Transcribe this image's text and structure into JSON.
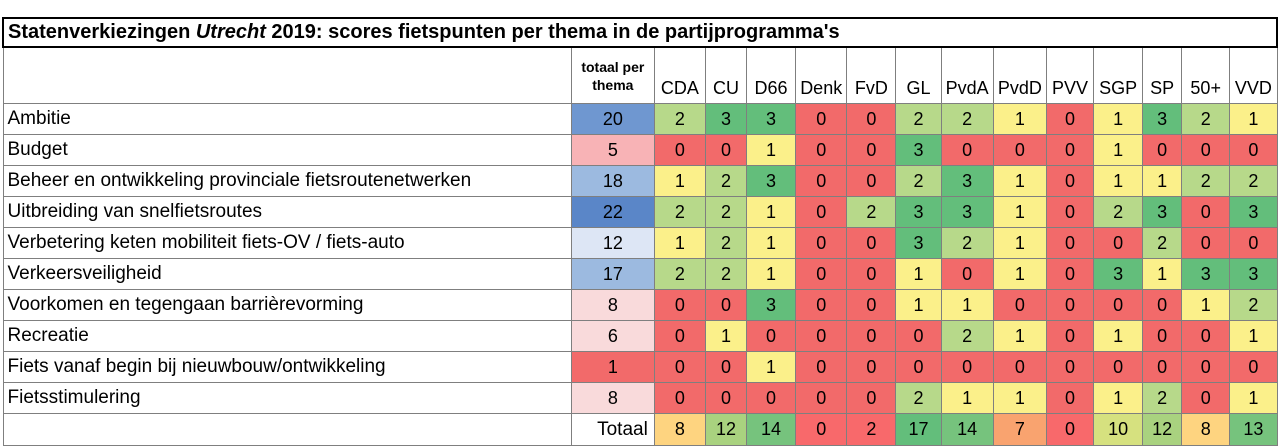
{
  "title": {
    "before": "Statenverkiezingen ",
    "italic": "Utrecht",
    "after": " 2019: scores fietspunten per thema in de partijprogramma's"
  },
  "header": {
    "total_col": "totaal per thema",
    "parties": [
      "CDA",
      "CU",
      "D66",
      "Denk",
      "FvD",
      "GL",
      "PvdA",
      "PvdD",
      "PVV",
      "SGP",
      "SP",
      "50+",
      "VVD"
    ]
  },
  "colors": {
    "s0": "#f26a6a",
    "s1": "#fbf08a",
    "s2": "#b7d98a",
    "s3": "#63be7b",
    "tot_scale": [
      "#f26a6a",
      "#f8b3b6",
      "#f9dadb",
      "#dde6f5",
      "#9cbae0",
      "#6f97d0",
      "#5a86c8"
    ],
    "sum_scale": [
      "#f8696b",
      "#f9a36f",
      "#fed480",
      "#d6e17f",
      "#a9d27f",
      "#76c37d",
      "#63be7b"
    ]
  },
  "rows": [
    {
      "theme": "Ambitie",
      "total": 20,
      "scores": [
        2,
        3,
        3,
        0,
        0,
        2,
        2,
        1,
        0,
        1,
        3,
        2,
        1
      ]
    },
    {
      "theme": "Budget",
      "total": 5,
      "scores": [
        0,
        0,
        1,
        0,
        0,
        3,
        0,
        0,
        0,
        1,
        0,
        0,
        0
      ]
    },
    {
      "theme": "Beheer en ontwikkeling provinciale fietsroutenetwerken",
      "total": 18,
      "scores": [
        1,
        2,
        3,
        0,
        0,
        2,
        3,
        1,
        0,
        1,
        1,
        2,
        2
      ]
    },
    {
      "theme": "Uitbreiding van snelfietsroutes",
      "total": 22,
      "scores": [
        2,
        2,
        1,
        0,
        2,
        3,
        3,
        1,
        0,
        2,
        3,
        0,
        3
      ]
    },
    {
      "theme": "Verbetering keten mobiliteit fiets-OV / fiets-auto",
      "total": 12,
      "scores": [
        1,
        2,
        1,
        0,
        0,
        3,
        2,
        1,
        0,
        0,
        2,
        0,
        0
      ]
    },
    {
      "theme": "Verkeersveiligheid",
      "total": 17,
      "scores": [
        2,
        2,
        1,
        0,
        0,
        1,
        0,
        1,
        0,
        3,
        1,
        3,
        3
      ]
    },
    {
      "theme": "Voorkomen en tegengaan barrièrevorming",
      "total": 8,
      "scores": [
        0,
        0,
        3,
        0,
        0,
        1,
        1,
        0,
        0,
        0,
        0,
        1,
        2
      ]
    },
    {
      "theme": "Recreatie",
      "total": 6,
      "scores": [
        0,
        1,
        0,
        0,
        0,
        0,
        2,
        1,
        0,
        1,
        0,
        0,
        1
      ]
    },
    {
      "theme": "Fiets vanaf begin bij nieuwbouw/ontwikkeling",
      "total": 1,
      "scores": [
        0,
        0,
        1,
        0,
        0,
        0,
        0,
        0,
        0,
        0,
        0,
        0,
        0
      ]
    },
    {
      "theme": "Fietsstimulering",
      "total": 8,
      "scores": [
        0,
        0,
        0,
        0,
        0,
        2,
        1,
        1,
        0,
        1,
        2,
        0,
        1
      ]
    }
  ],
  "totals": {
    "label": "Totaal",
    "values": [
      8,
      12,
      14,
      0,
      2,
      17,
      14,
      7,
      0,
      10,
      12,
      8,
      13
    ]
  }
}
